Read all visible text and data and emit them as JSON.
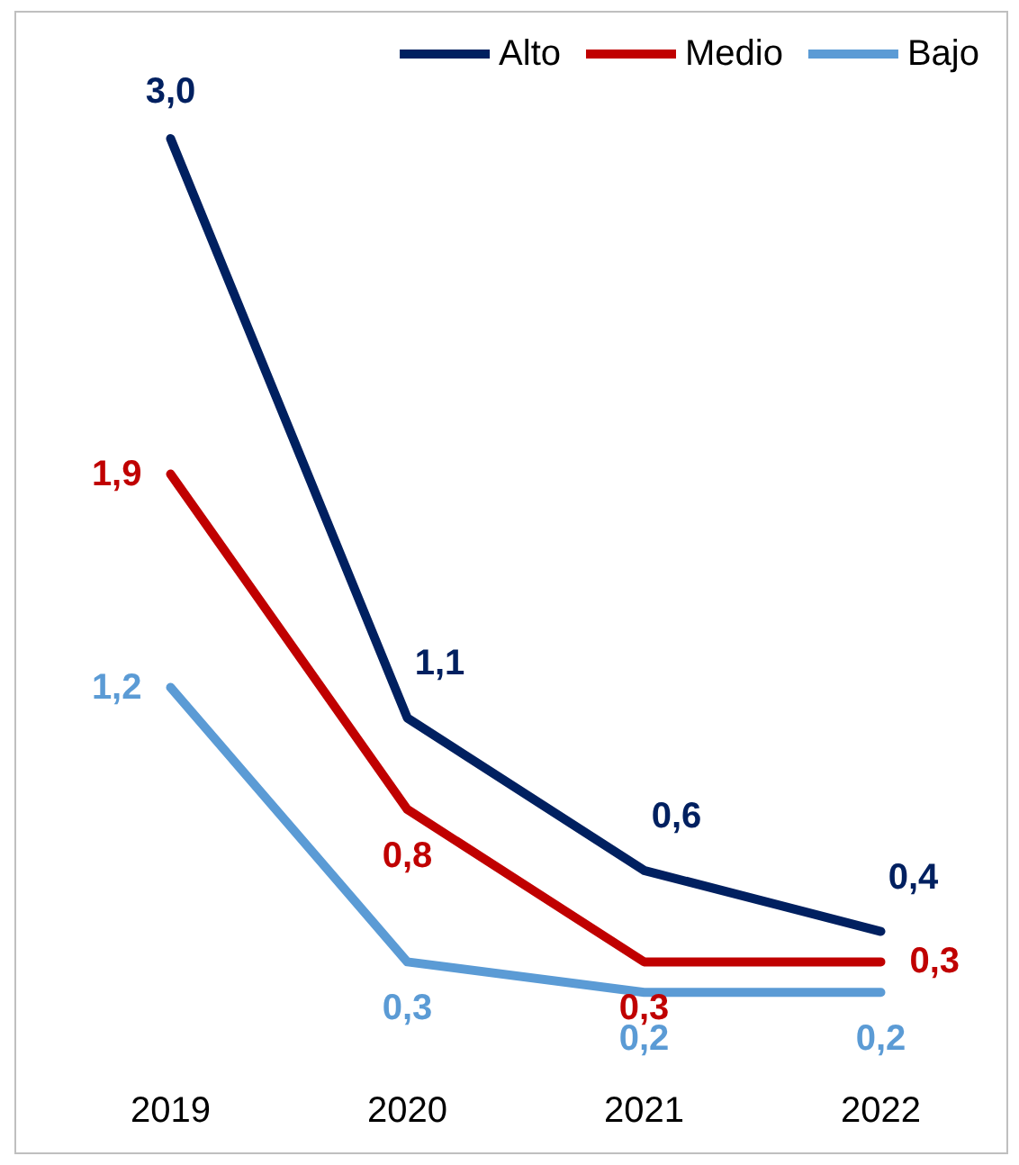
{
  "chart_data": {
    "type": "line",
    "categories": [
      "2019",
      "2020",
      "2021",
      "2022"
    ],
    "series": [
      {
        "name": "Alto",
        "color": "#002060",
        "values": [
          3.0,
          1.1,
          0.6,
          0.4
        ],
        "value_labels": [
          "3,0",
          "1,1",
          "0,6",
          "0,4"
        ]
      },
      {
        "name": "Medio",
        "color": "#c00000",
        "values": [
          1.9,
          0.8,
          0.3,
          0.3
        ],
        "value_labels": [
          "1,9",
          "0,8",
          "0,3",
          "0,3"
        ]
      },
      {
        "name": "Bajo",
        "color": "#5b9bd5",
        "values": [
          1.2,
          0.3,
          0.2,
          0.2
        ],
        "value_labels": [
          "1,2",
          "0,3",
          "0,2",
          "0,2"
        ]
      }
    ],
    "legend": "top right",
    "grid": false,
    "marker": "none",
    "line_style": "solid"
  }
}
